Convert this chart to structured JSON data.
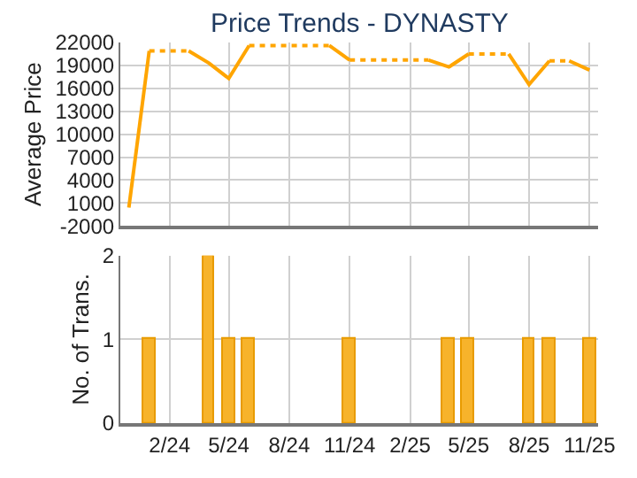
{
  "chart_data": [
    {
      "type": "line",
      "title": "Price Trends - DYNASTY",
      "ylabel": "Average Price",
      "ylim": [
        -2000,
        22000
      ],
      "yticks": [
        -2000,
        1000,
        4000,
        7000,
        10000,
        13000,
        16000,
        19000,
        22000
      ],
      "xlim": [
        "2023-11-18",
        "2025-11-14"
      ],
      "xticks": [
        {
          "value": "2024-02",
          "label": null
        },
        {
          "value": "2024-05",
          "label": null
        },
        {
          "value": "2024-08",
          "label": null
        },
        {
          "value": "2024-11",
          "label": null
        },
        {
          "value": "2025-02",
          "label": null
        },
        {
          "value": "2025-05",
          "label": null
        },
        {
          "value": "2025-08",
          "label": null
        },
        {
          "value": "2025-11",
          "label": null
        }
      ],
      "tick_labels": "y",
      "grid": true,
      "marker": "none",
      "series": [
        {
          "color": "#ffa500",
          "line_style": "solid",
          "x": [
            "2023-12",
            "2024-01"
          ],
          "values": [
            400,
            20900
          ]
        },
        {
          "color": "#ffa500",
          "line_style": "dotted",
          "x": [
            "2024-01",
            "2024-02",
            "2024-03"
          ],
          "values": [
            20900,
            20900,
            20900
          ]
        },
        {
          "color": "#ffa500",
          "line_style": "solid",
          "x": [
            "2024-03",
            "2024-04",
            "2024-05",
            "2024-06"
          ],
          "values": [
            20900,
            19300,
            17300,
            21600
          ]
        },
        {
          "color": "#ffa500",
          "line_style": "dotted",
          "x": [
            "2024-06",
            "2024-07",
            "2024-08",
            "2024-09",
            "2024-10"
          ],
          "values": [
            21600,
            21600,
            21600,
            21600,
            21600
          ]
        },
        {
          "color": "#ffa500",
          "line_style": "solid",
          "x": [
            "2024-10",
            "2024-11"
          ],
          "values": [
            21600,
            19700
          ]
        },
        {
          "color": "#ffa500",
          "line_style": "dotted",
          "x": [
            "2024-11",
            "2024-12",
            "2025-01",
            "2025-02",
            "2025-03"
          ],
          "values": [
            19700,
            19700,
            19700,
            19700,
            19700
          ]
        },
        {
          "color": "#ffa500",
          "line_style": "solid",
          "x": [
            "2025-03",
            "2025-04",
            "2025-05"
          ],
          "values": [
            19700,
            18800,
            20500
          ]
        },
        {
          "color": "#ffa500",
          "line_style": "dotted",
          "x": [
            "2025-05",
            "2025-06",
            "2025-07"
          ],
          "values": [
            20500,
            20500,
            20500
          ]
        },
        {
          "color": "#ffa500",
          "line_style": "solid",
          "x": [
            "2025-07",
            "2025-08",
            "2025-09"
          ],
          "values": [
            20500,
            16500,
            19600
          ]
        },
        {
          "color": "#ffa500",
          "line_style": "dotted",
          "x": [
            "2025-09",
            "2025-10"
          ],
          "values": [
            19600,
            19600
          ]
        },
        {
          "color": "#ffa500",
          "line_style": "solid",
          "x": [
            "2025-10",
            "2025-11"
          ],
          "values": [
            19600,
            18400
          ]
        }
      ]
    },
    {
      "type": "bar",
      "ylabel": "No. of Trans.",
      "ylim": [
        0,
        2
      ],
      "yticks": [
        0,
        1,
        2
      ],
      "xlim": [
        "2023-11-18",
        "2025-11-14"
      ],
      "xticks": [
        {
          "value": "2024-02",
          "label": "2/24"
        },
        {
          "value": "2024-05",
          "label": "5/24"
        },
        {
          "value": "2024-08",
          "label": "8/24"
        },
        {
          "value": "2024-11",
          "label": "11/24"
        },
        {
          "value": "2025-02",
          "label": "2/25"
        },
        {
          "value": "2025-05",
          "label": "5/25"
        },
        {
          "value": "2025-08",
          "label": "8/25"
        },
        {
          "value": "2025-11",
          "label": "11/25"
        }
      ],
      "grid": true,
      "series": [
        {
          "color": "#f7b32b",
          "x": [
            "2024-01",
            "2024-04",
            "2024-05",
            "2024-06",
            "2024-11",
            "2025-04",
            "2025-05",
            "2025-08",
            "2025-09",
            "2025-11"
          ],
          "values": [
            1,
            2,
            1,
            1,
            1,
            1,
            1,
            1,
            1,
            1
          ]
        }
      ]
    }
  ]
}
